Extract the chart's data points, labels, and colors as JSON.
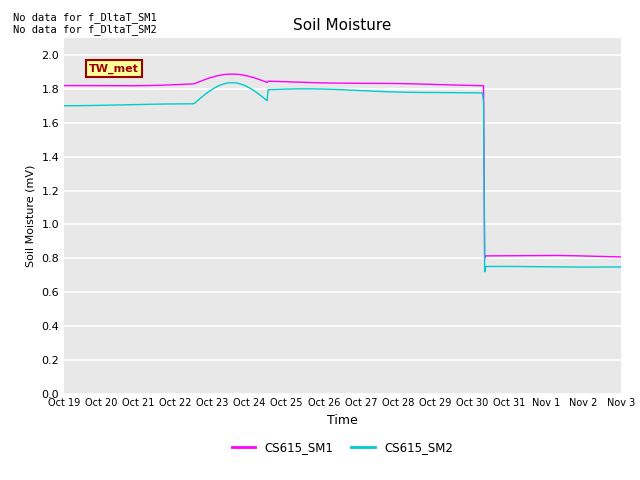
{
  "title": "Soil Moisture",
  "xlabel": "Time",
  "ylabel": "Soil Moisture (mV)",
  "ylim": [
    0.0,
    2.1
  ],
  "yticks": [
    0.0,
    0.2,
    0.4,
    0.6,
    0.8,
    1.0,
    1.2,
    1.4,
    1.6,
    1.8,
    2.0
  ],
  "xtick_labels": [
    "Oct 19",
    "Oct 20",
    "Oct 21",
    "Oct 22",
    "Oct 23",
    "Oct 24",
    "Oct 25",
    "Oct 26",
    "Oct 27",
    "Oct 28",
    "Oct 29",
    "Oct 30",
    "Oct 31",
    "Nov 1",
    "Nov 2",
    "Nov 3"
  ],
  "no_data_text_1": "No data for f_DltaT_SM1",
  "no_data_text_2": "No data for f_DltaT_SM2",
  "legend_label1": "CS615_SM1",
  "legend_label2": "CS615_SM2",
  "tw_met_label": "TW_met",
  "color_sm1": "#FF00FF",
  "color_sm2": "#00CCCC",
  "background_color": "#E8E8E8",
  "grid_color": "#FFFFFF",
  "tw_met_bg": "#FFFF99",
  "tw_met_border": "#990000"
}
